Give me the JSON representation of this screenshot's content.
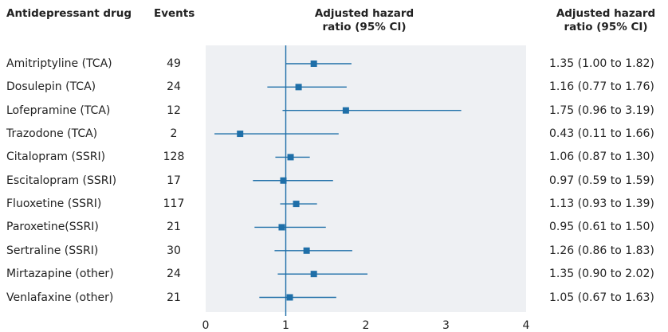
{
  "headers": {
    "drug": "Antidepressant drug",
    "events": "Events",
    "plot_line1": "Adjusted hazard",
    "plot_line2": "ratio (95% CI)",
    "ratio_line1": "Adjusted hazard",
    "ratio_line2": "ratio (95% CI)"
  },
  "colors": {
    "marker": "#1f6fa8",
    "panel": "#eef0f3"
  },
  "chart_data": {
    "type": "forest",
    "xlim": [
      0,
      4
    ],
    "x_ticks": [
      "0",
      "1",
      "2",
      "3",
      "4"
    ],
    "reference_line": 1,
    "rows": [
      {
        "drug": "Amitriptyline (TCA)",
        "events": "49",
        "hr": 1.35,
        "lo": 1.0,
        "hi": 1.82,
        "ci_text": "1.35 (1.00 to 1.82)"
      },
      {
        "drug": "Dosulepin (TCA)",
        "events": "24",
        "hr": 1.16,
        "lo": 0.77,
        "hi": 1.76,
        "ci_text": "1.16 (0.77 to 1.76)"
      },
      {
        "drug": "Lofepramine (TCA)",
        "events": "12",
        "hr": 1.75,
        "lo": 0.96,
        "hi": 3.19,
        "ci_text": "1.75 (0.96 to 3.19)"
      },
      {
        "drug": "Trazodone (TCA)",
        "events": "2",
        "hr": 0.43,
        "lo": 0.11,
        "hi": 1.66,
        "ci_text": "0.43 (0.11 to 1.66)"
      },
      {
        "drug": "Citalopram (SSRI)",
        "events": "128",
        "hr": 1.06,
        "lo": 0.87,
        "hi": 1.3,
        "ci_text": "1.06 (0.87 to 1.30)"
      },
      {
        "drug": "Escitalopram (SSRI)",
        "events": "17",
        "hr": 0.97,
        "lo": 0.59,
        "hi": 1.59,
        "ci_text": "0.97 (0.59 to 1.59)"
      },
      {
        "drug": "Fluoxetine (SSRI)",
        "events": "117",
        "hr": 1.13,
        "lo": 0.93,
        "hi": 1.39,
        "ci_text": "1.13 (0.93 to 1.39)"
      },
      {
        "drug": "Paroxetine(SSRI)",
        "events": "21",
        "hr": 0.95,
        "lo": 0.61,
        "hi": 1.5,
        "ci_text": "0.95 (0.61 to 1.50)"
      },
      {
        "drug": "Sertraline (SSRI)",
        "events": "30",
        "hr": 1.26,
        "lo": 0.86,
        "hi": 1.83,
        "ci_text": "1.26 (0.86 to 1.83)"
      },
      {
        "drug": "Mirtazapine (other)",
        "events": "24",
        "hr": 1.35,
        "lo": 0.9,
        "hi": 2.02,
        "ci_text": "1.35 (0.90 to 2.02)"
      },
      {
        "drug": "Venlafaxine (other)",
        "events": "21",
        "hr": 1.05,
        "lo": 0.67,
        "hi": 1.63,
        "ci_text": "1.05 (0.67 to 1.63)"
      }
    ]
  }
}
